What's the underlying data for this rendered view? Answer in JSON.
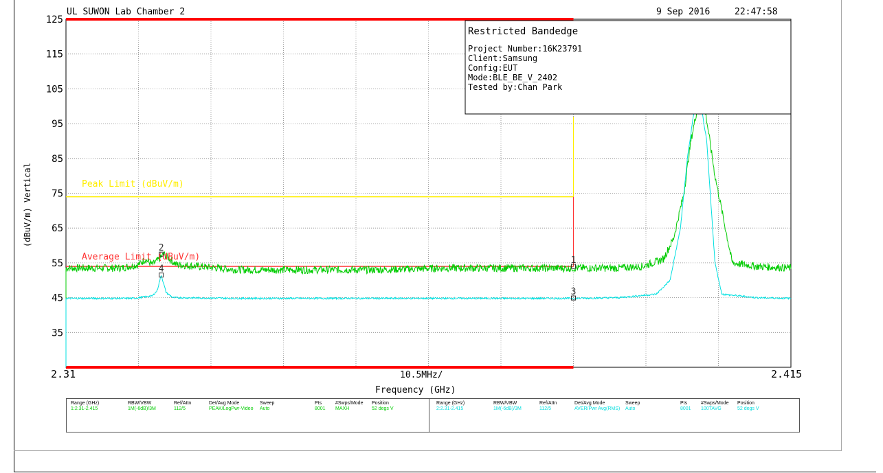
{
  "header": {
    "lab": "UL SUWON Lab Chamber 2",
    "date": "9 Sep 2016",
    "time": "22:47:58"
  },
  "info_box": {
    "title": "Restricted Bandedge",
    "lines": [
      "Project Number:16K23791",
      "Client:Samsung",
      "Config:EUT",
      "Mode:BLE_BE_V_2402",
      "Tested by:Chan Park"
    ]
  },
  "colors": {
    "peak_trace": "#00cc00",
    "avg_trace": "#00e0e0",
    "peak_limit": "#ffee00",
    "avg_limit": "#ff3333",
    "band_edge_marker": "#ff0000",
    "grid": "#888888"
  },
  "chart_data": {
    "type": "line",
    "ylabel": "(dBuV/m) Vertical",
    "xlabel": "Frequency (GHz)",
    "x_span_label": "10.5MHz/",
    "x_start_label": "2.31",
    "x_end_label": "2.415",
    "xlim": [
      2.31,
      2.415
    ],
    "ylim": [
      25,
      125
    ],
    "yticks": [
      125,
      115,
      105,
      95,
      85,
      75,
      65,
      55,
      45,
      35
    ],
    "grid": true,
    "band_edge_ghz": 2.3835,
    "limits": [
      {
        "label": "Peak Limit (dBuV/m)",
        "value": 74
      },
      {
        "label": "Average Limit (dBuV/m)",
        "value": 54
      }
    ],
    "series": [
      {
        "kind": "peak",
        "x": [
          2.31,
          2.318,
          2.3205,
          2.3215,
          2.3225,
          2.3232,
          2.3242,
          2.326,
          2.335,
          2.345,
          2.355,
          2.365,
          2.375,
          2.383,
          2.39,
          2.3935,
          2.3965,
          2.398,
          2.3995,
          2.4005,
          2.4015,
          2.4025,
          2.404,
          2.4065,
          2.41,
          2.415
        ],
        "values": [
          53.5,
          53.5,
          54.5,
          56,
          54.5,
          55.5,
          57.5,
          54.5,
          53,
          53,
          53,
          53.5,
          53.5,
          53.5,
          53.5,
          54,
          56,
          62,
          75,
          90,
          100,
          100,
          80,
          55,
          54,
          53.5
        ]
      },
      {
        "kind": "average",
        "x": [
          2.31,
          2.3198,
          2.3225,
          2.3232,
          2.3238,
          2.3245,
          2.3255,
          2.335,
          2.35,
          2.365,
          2.38,
          2.3835,
          2.39,
          2.3955,
          2.3975,
          2.399,
          2.4,
          2.401,
          2.402,
          2.4028,
          2.404,
          2.405,
          2.41,
          2.415
        ],
        "values": [
          44.8,
          44.8,
          45.5,
          47,
          51.5,
          46.5,
          45,
          44.8,
          44.8,
          44.8,
          44.8,
          44.8,
          45,
          46,
          50,
          65,
          85,
          99,
          100,
          90,
          55,
          46,
          45,
          44.8
        ]
      }
    ],
    "markers": [
      {
        "label": "1",
        "x": 2.3835,
        "y": 54
      },
      {
        "label": "2",
        "x": 2.3238,
        "y": 57.5
      },
      {
        "label": "3",
        "x": 2.3835,
        "y": 44.9
      },
      {
        "label": "4",
        "x": 2.3238,
        "y": 51.5
      }
    ]
  },
  "settings": {
    "headers": [
      "Range (GHz)",
      "RBW/VBW",
      "Ref/Attn",
      "Det/Avg Mode",
      "Sweep",
      "Pts",
      "#Swps/Mode",
      "Position"
    ],
    "rows": [
      [
        "1:2.31-2.415",
        "1M(-6dB)/3M",
        "112/5",
        "PEAK/LogPwr-Video",
        "Auto",
        "8001",
        "MAXH",
        "52 degs V"
      ],
      [
        "2:2.31-2.415",
        "1M(-6dB)/3M",
        "112/5",
        "AVER/Pwr Avg(RMS)",
        "Auto",
        "8001",
        "100TAVG",
        "52 degs V"
      ]
    ]
  }
}
